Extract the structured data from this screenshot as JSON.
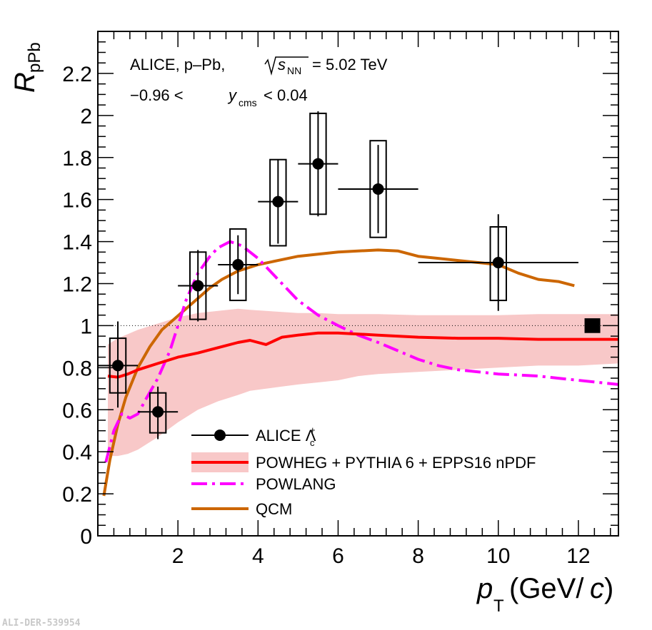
{
  "chart_data": {
    "type": "scatter",
    "title": "ALICE, p–Pb, √s_NN = 5.02 TeV",
    "annotations": {
      "line1_prefix": "ALICE, p–Pb,",
      "line1_s": "s",
      "line1_nn": "NN",
      "line1_value": "= 5.02 TeV",
      "line2_prefix": "−0.96 <",
      "line2_y": "y",
      "line2_cms": "cms",
      "line2_suffix": "< 0.04"
    },
    "xlabel": {
      "p": "p",
      "sub": "T",
      "unit_open": "(GeV/",
      "c": "c",
      "unit_close": ")"
    },
    "ylabel": {
      "R": "R",
      "sub": "pPb"
    },
    "xlim": [
      0,
      13
    ],
    "ylim": [
      0,
      2.4
    ],
    "x_ticks": [
      2,
      4,
      6,
      8,
      10,
      12
    ],
    "x_tick_labels": [
      "2",
      "4",
      "6",
      "8",
      "10",
      "12"
    ],
    "y_ticks": [
      0,
      0.2,
      0.4,
      0.6,
      0.8,
      1,
      1.2,
      1.4,
      1.6,
      1.8,
      2,
      2.2
    ],
    "y_tick_labels": [
      "0",
      "0.2",
      "0.4",
      "0.6",
      "0.8",
      "1",
      "1.2",
      "1.4",
      "1.6",
      "1.8",
      "2",
      "2.2"
    ],
    "reference_line": 1.0,
    "normalization_box": {
      "x": 12.35,
      "y": 1.0,
      "half_height": 0.035
    },
    "alice_points": [
      {
        "x": 0.5,
        "y": 0.81,
        "xerr": 0.5,
        "stat_lo": 0.2,
        "stat_hi": 0.21,
        "syst_lo": 0.13,
        "syst_hi": 0.13,
        "box_half_width": 0.2
      },
      {
        "x": 1.5,
        "y": 0.59,
        "xerr": 0.5,
        "stat_lo": 0.13,
        "stat_hi": 0.12,
        "syst_lo": 0.1,
        "syst_hi": 0.09,
        "box_half_width": 0.2
      },
      {
        "x": 2.5,
        "y": 1.19,
        "xerr": 0.5,
        "stat_lo": 0.17,
        "stat_hi": 0.17,
        "syst_lo": 0.16,
        "syst_hi": 0.16,
        "box_half_width": 0.2
      },
      {
        "x": 3.5,
        "y": 1.29,
        "xerr": 0.5,
        "stat_lo": 0.14,
        "stat_hi": 0.14,
        "syst_lo": 0.17,
        "syst_hi": 0.17,
        "box_half_width": 0.2
      },
      {
        "x": 4.5,
        "y": 1.59,
        "xerr": 0.5,
        "stat_lo": 0.2,
        "stat_hi": 0.2,
        "syst_lo": 0.21,
        "syst_hi": 0.2,
        "box_half_width": 0.2
      },
      {
        "x": 5.5,
        "y": 1.77,
        "xerr": 0.5,
        "stat_lo": 0.25,
        "stat_hi": 0.25,
        "syst_lo": 0.24,
        "syst_hi": 0.24,
        "box_half_width": 0.2
      },
      {
        "x": 7.0,
        "y": 1.65,
        "xerr": 1.0,
        "stat_lo": 0.21,
        "stat_hi": 0.21,
        "syst_lo": 0.23,
        "syst_hi": 0.23,
        "box_half_width": 0.2
      },
      {
        "x": 10.0,
        "y": 1.3,
        "xerr": 2.0,
        "stat_lo": 0.23,
        "stat_hi": 0.23,
        "syst_lo": 0.18,
        "syst_hi": 0.17,
        "box_half_width": 0.2
      }
    ],
    "series": [
      {
        "name": "POWHEG + PYTHIA 6 + EPPS16 nPDF",
        "color": "#ff0000",
        "band_color": "#f8c8c8",
        "x": [
          0.25,
          0.5,
          0.75,
          1.0,
          1.5,
          2.0,
          2.5,
          3.0,
          3.5,
          3.8,
          4.2,
          4.6,
          5.0,
          5.5,
          6.0,
          6.5,
          7.0,
          8.0,
          9.0,
          10.0,
          11.0,
          12.0,
          13.0
        ],
        "values": [
          0.76,
          0.755,
          0.77,
          0.79,
          0.82,
          0.85,
          0.87,
          0.895,
          0.92,
          0.93,
          0.91,
          0.945,
          0.955,
          0.965,
          0.965,
          0.96,
          0.955,
          0.945,
          0.94,
          0.94,
          0.935,
          0.935,
          0.935
        ],
        "band_low": [
          0.38,
          0.38,
          0.39,
          0.41,
          0.47,
          0.54,
          0.6,
          0.64,
          0.67,
          0.69,
          0.7,
          0.71,
          0.72,
          0.73,
          0.74,
          0.76,
          0.77,
          0.78,
          0.79,
          0.8,
          0.81,
          0.81,
          0.82
        ],
        "band_high": [
          0.91,
          0.94,
          0.96,
          0.98,
          1.01,
          1.04,
          1.06,
          1.07,
          1.08,
          1.075,
          1.07,
          1.065,
          1.06,
          1.06,
          1.055,
          1.055,
          1.055,
          1.05,
          1.05,
          1.05,
          1.055,
          1.055,
          1.055
        ]
      },
      {
        "name": "POWLANG",
        "color": "#ff00ff",
        "x": [
          0.2,
          0.4,
          0.6,
          0.8,
          1.0,
          1.2,
          1.5,
          1.8,
          2.0,
          2.2,
          2.5,
          2.8,
          3.0,
          3.3,
          3.6,
          4.0,
          4.5,
          5.0,
          5.5,
          6.0,
          6.5,
          7.0,
          7.5,
          8.0,
          8.5,
          9.0,
          9.5,
          10.0,
          10.5,
          11.0,
          11.5,
          12.0,
          12.5,
          13.0
        ],
        "values": [
          0.35,
          0.5,
          0.58,
          0.56,
          0.58,
          0.65,
          0.75,
          0.88,
          1.0,
          1.12,
          1.25,
          1.33,
          1.37,
          1.4,
          1.38,
          1.32,
          1.22,
          1.12,
          1.05,
          1.0,
          0.955,
          0.92,
          0.88,
          0.84,
          0.81,
          0.79,
          0.78,
          0.77,
          0.765,
          0.76,
          0.75,
          0.74,
          0.73,
          0.72
        ]
      },
      {
        "name": "QCM",
        "color": "#cc6600",
        "x": [
          0.15,
          0.3,
          0.5,
          0.7,
          1.0,
          1.3,
          1.6,
          1.9,
          2.2,
          2.5,
          2.8,
          3.1,
          3.5,
          4.0,
          4.5,
          5.0,
          5.5,
          6.0,
          6.5,
          7.0,
          7.5,
          8.0,
          8.5,
          9.0,
          9.5,
          10.0,
          10.5,
          11.0,
          11.5,
          11.9
        ],
        "values": [
          0.19,
          0.36,
          0.53,
          0.66,
          0.8,
          0.9,
          0.98,
          1.03,
          1.08,
          1.13,
          1.18,
          1.22,
          1.26,
          1.29,
          1.31,
          1.33,
          1.34,
          1.35,
          1.355,
          1.36,
          1.355,
          1.33,
          1.32,
          1.31,
          1.3,
          1.29,
          1.25,
          1.22,
          1.21,
          1.19
        ]
      }
    ],
    "legend": {
      "position": "bottom-center",
      "entries": [
        {
          "label": "ALICE Λ",
          "sub": "c",
          "sup": "+"
        },
        {
          "label": "POWHEG + PYTHIA 6 + EPPS16 nPDF"
        },
        {
          "label": "POWLANG"
        },
        {
          "label": "QCM"
        }
      ]
    },
    "footer": "ALI-DER-539954"
  }
}
